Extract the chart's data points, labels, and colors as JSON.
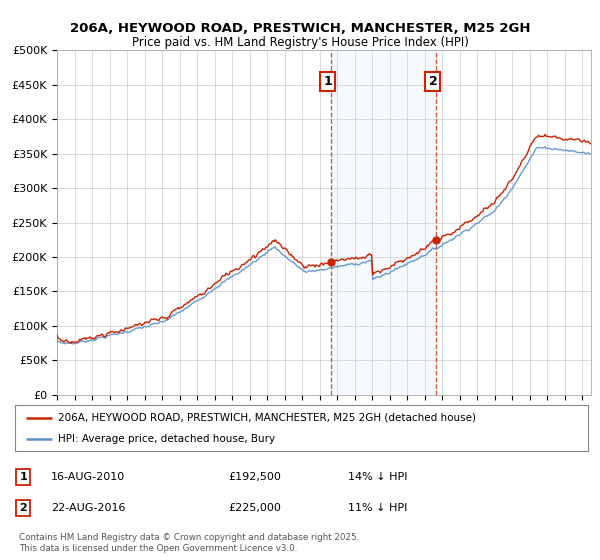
{
  "title1": "206A, HEYWOOD ROAD, PRESTWICH, MANCHESTER, M25 2GH",
  "title2": "Price paid vs. HM Land Registry's House Price Index (HPI)",
  "ylabel_ticks": [
    "£0",
    "£50K",
    "£100K",
    "£150K",
    "£200K",
    "£250K",
    "£300K",
    "£350K",
    "£400K",
    "£450K",
    "£500K"
  ],
  "ytick_values": [
    0,
    50000,
    100000,
    150000,
    200000,
    250000,
    300000,
    350000,
    400000,
    450000,
    500000
  ],
  "ylim": [
    0,
    500000
  ],
  "xlim_start": 1995.0,
  "xlim_end": 2025.5,
  "hpi_color": "#5b8fc9",
  "price_color": "#cc2200",
  "sale1_year": 2010.625,
  "sale1_price": 192500,
  "sale1_label": "16-AUG-2010",
  "sale1_text": "£192,500",
  "sale1_hpi_pct": "14% ↓ HPI",
  "sale2_year": 2016.625,
  "sale2_price": 225000,
  "sale2_label": "22-AUG-2016",
  "sale2_text": "£225,000",
  "sale2_hpi_pct": "11% ↓ HPI",
  "legend_line1": "206A, HEYWOOD ROAD, PRESTWICH, MANCHESTER, M25 2GH (detached house)",
  "legend_line2": "HPI: Average price, detached house, Bury",
  "footer": "Contains HM Land Registry data © Crown copyright and database right 2025.\nThis data is licensed under the Open Government Licence v3.0.",
  "shade_color": "#ddeeff",
  "vline_color": "#cc2200"
}
